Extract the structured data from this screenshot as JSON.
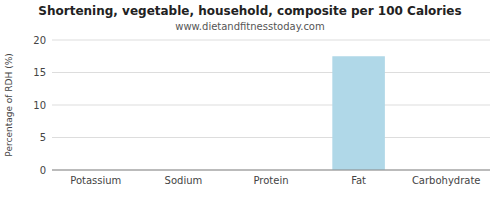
{
  "chart_data": {
    "type": "bar",
    "title": "Shortening, vegetable, household, composite per 100 Calories",
    "subtitle": "www.dietandfitnesstoday.com",
    "categories": [
      "Potassium",
      "Sodium",
      "Protein",
      "Fat",
      "Carbohydrate"
    ],
    "values": [
      0,
      0,
      0,
      17.5,
      0
    ],
    "color": "#b0d8e8",
    "ylabel": "Percentage of RDH (%)",
    "ylim": [
      0,
      20
    ],
    "yticks": [
      0,
      5,
      10,
      15,
      20
    ],
    "grid": true
  }
}
